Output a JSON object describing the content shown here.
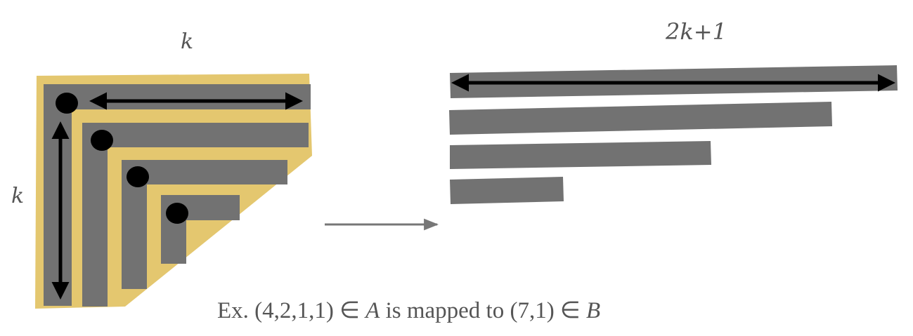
{
  "labels": {
    "k_top": "k",
    "k_left": "k",
    "width_right": "2k+1"
  },
  "caption": {
    "prefix": "Ex. (4,2,1,1)  ∈ ",
    "set_a": "A",
    "middle": " is mapped to (7,1) ∈ ",
    "set_b": "B"
  },
  "partition_a": [
    4,
    2,
    1,
    1
  ],
  "image_b": [
    7,
    1
  ],
  "colors": {
    "background": "#ffffff",
    "gold_fill": "#e4c76f",
    "bar_gray": "#727272",
    "dot_black": "#000000",
    "arrow_gray": "#777777",
    "text_gray": "#555555"
  }
}
